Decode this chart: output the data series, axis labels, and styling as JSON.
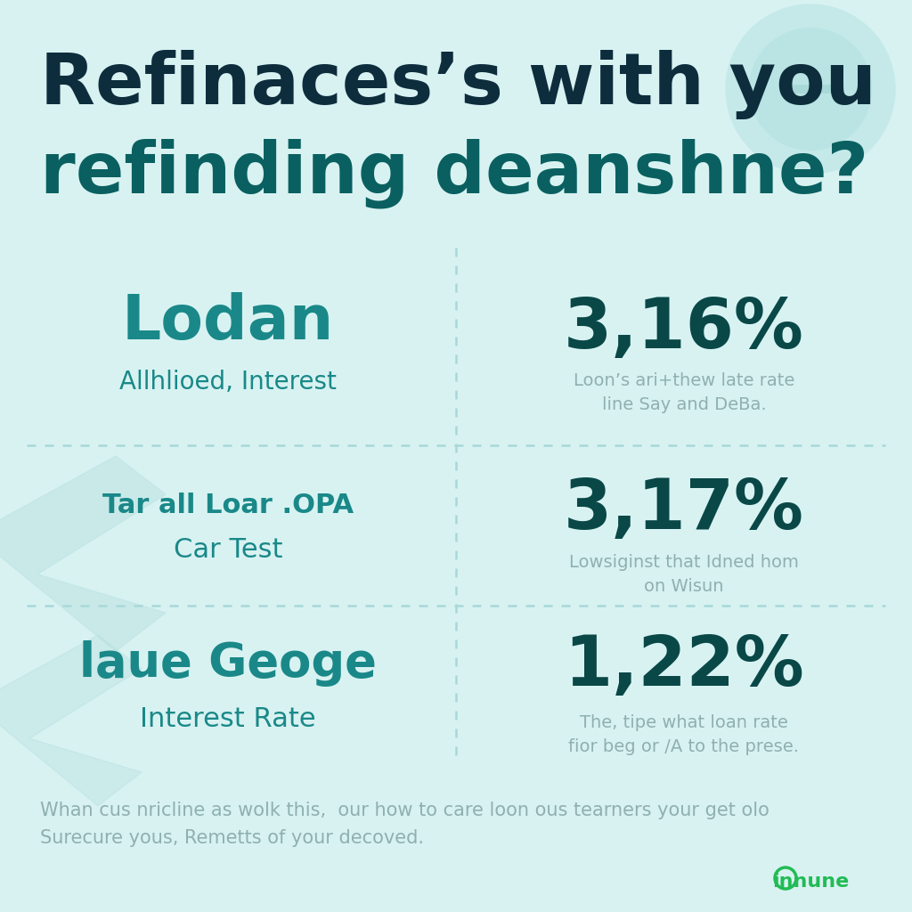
{
  "bg_color": "#d8f2f2",
  "title_line1": "Refinaces’s with you",
  "title_line2": "refinding deanshne?",
  "title_color": "#0d2d3d",
  "title2_color": "#0a6060",
  "divider_color": "#a8d8d8",
  "row1_left_title": "Lodan",
  "row1_left_sub": "Allhlioed, Interest",
  "row1_right_value": "3,16%",
  "row1_right_desc": "Loon’s ari+thew late rate\nline Say and DeBa.",
  "row2_left_title": "Tar all Loar .OPA",
  "row2_left_sub": "Car Test",
  "row2_right_value": "3,17%",
  "row2_right_desc": "Lowsiginst that Idned hom\non Wisun",
  "row3_left_title": "laue Geoge",
  "row3_left_sub": "Interest Rate",
  "row3_right_value": "1,22%",
  "row3_right_desc": "The, tipe what loan rate\nfior beg or /A to the prese.",
  "footer_text": "Whan сus nricline as wolk this,  our how to care loon ous tearners your get olo\nSurecure yous, Remetts of your decoved.",
  "teal_color": "#1a8888",
  "dark_teal": "#0a4848",
  "gray_color": "#90b0b0",
  "logo_color": "#22bb55",
  "logo_text": "innune",
  "row2_left_title_small": "Tar all Loar .OPA",
  "row3_left_title_part1": "laue ",
  "row3_left_title_part2": "Geoge"
}
